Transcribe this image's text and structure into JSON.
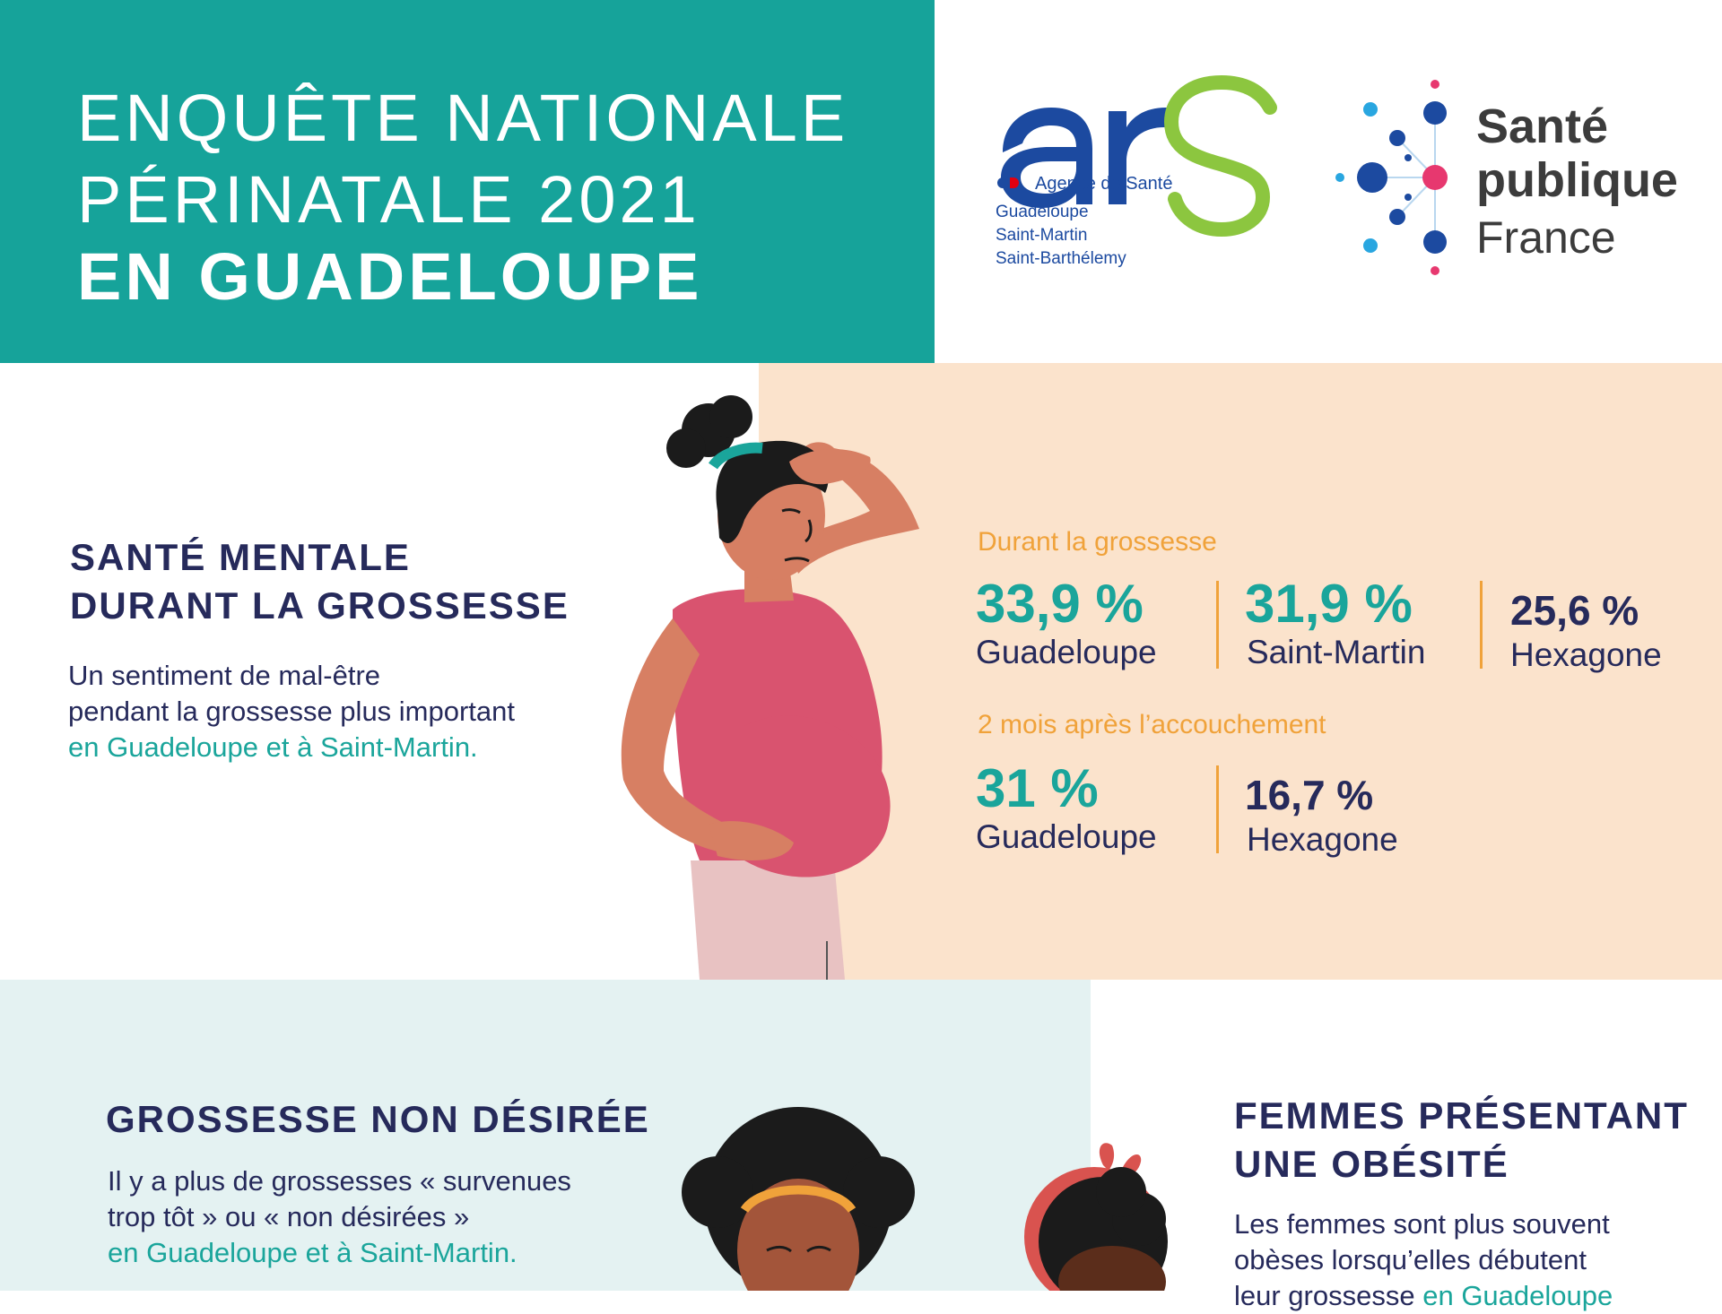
{
  "header": {
    "title_line1": "ENQUÊTE NATIONALE",
    "title_line2": "PÉRINATALE 2021",
    "title_line3": "EN GUADELOUPE"
  },
  "logos": {
    "ars": {
      "wordmark": "ars",
      "agency": "Agence de Santé",
      "regions": [
        "Guadeloupe",
        "Saint-Martin",
        "Saint-Barthélemy"
      ]
    },
    "spf": {
      "line1": "Santé",
      "line2": "publique",
      "line3": "France"
    }
  },
  "mental_health": {
    "title_line1": "SANTÉ MENTALE",
    "title_line2": "DURANT LA GROSSESSE",
    "desc_line1": "Un sentiment de mal-être",
    "desc_line2": "pendant la grossesse plus important",
    "desc_highlight": "en Guadeloupe et à Saint-Martin.",
    "during_label": "Durant la grossesse",
    "during": [
      {
        "value": "33,9 %",
        "region": "Guadeloupe"
      },
      {
        "value": "31,9 %",
        "region": "Saint-Martin"
      },
      {
        "value": "25,6 %",
        "region": "Hexagone"
      }
    ],
    "after_label": "2 mois après l’accouchement",
    "after": [
      {
        "value": "31 %",
        "region": "Guadeloupe"
      },
      {
        "value": "16,7 %",
        "region": "Hexagone"
      }
    ]
  },
  "unwanted": {
    "title": "GROSSESSE NON DÉSIRÉE",
    "desc_line1": "Il y a plus de grossesses « survenues",
    "desc_line2": "trop tôt » ou « non désirées »",
    "desc_highlight": "en Guadeloupe et à Saint-Martin."
  },
  "obesity": {
    "title_line1": "FEMMES PRÉSENTANT",
    "title_line2": "UNE OBÉSITÉ",
    "desc_line1": "Les femmes sont plus souvent",
    "desc_line2": "obèses lorsqu’elles débutent",
    "desc_line3": "leur grossesse",
    "desc_highlight": "en Guadeloupe"
  },
  "colors": {
    "teal": "#16a39a",
    "navy": "#262a5b",
    "orange": "#f0a23a",
    "peach": "#fbe3cc",
    "lightblue": "#e4f2f2"
  }
}
